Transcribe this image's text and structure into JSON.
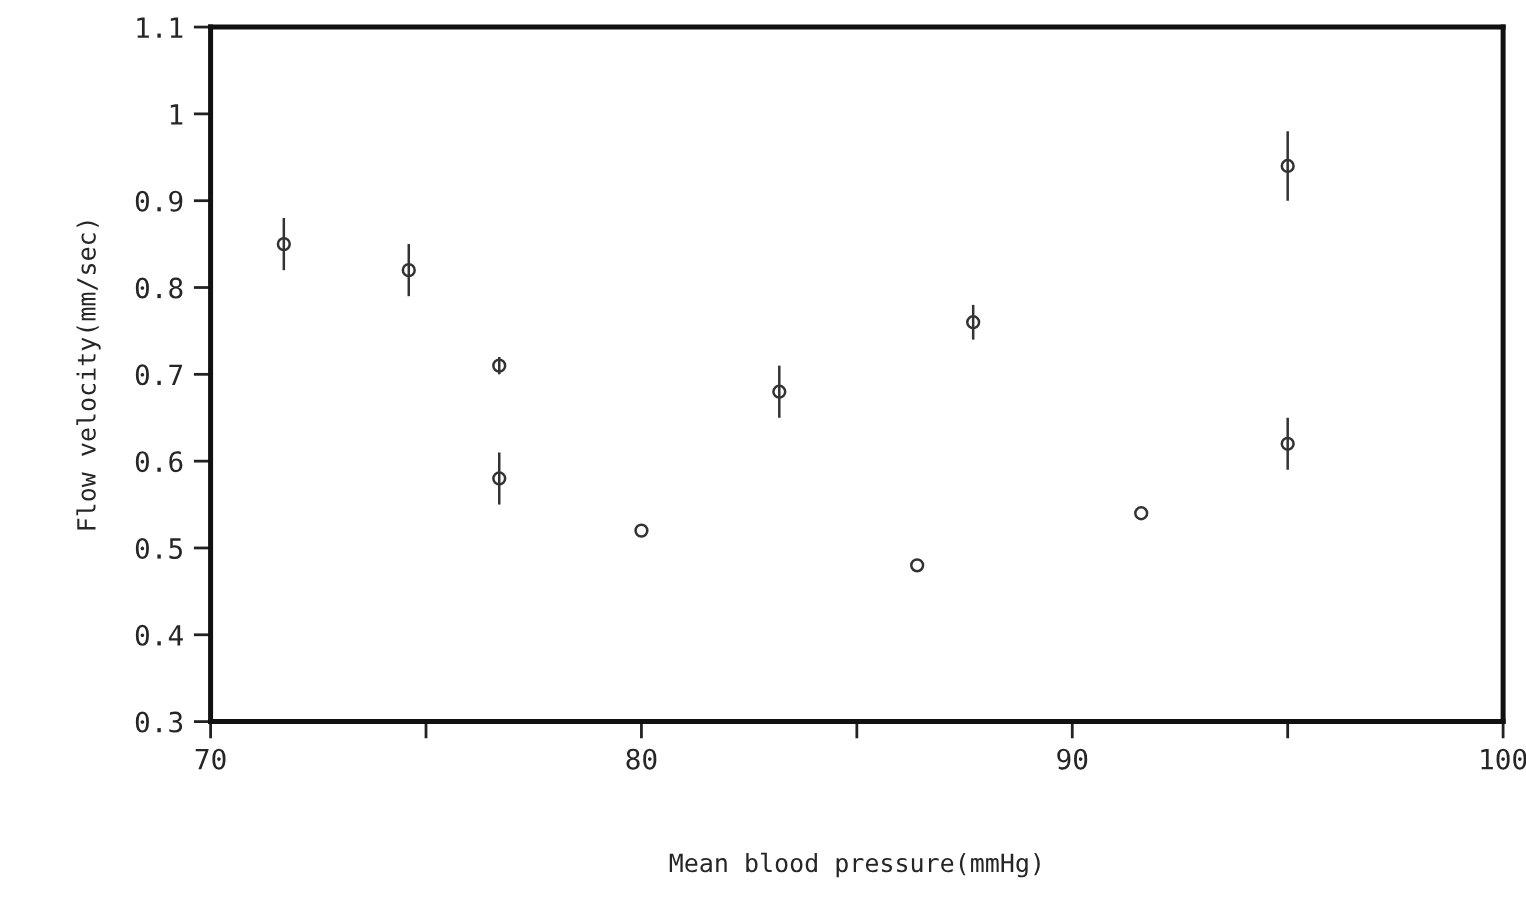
{
  "chart_data": {
    "type": "scatter",
    "xlabel": "Mean blood pressure(mmHg)",
    "ylabel": "Flow velocity(mm/sec)",
    "x": [
      71.7,
      74.6,
      76.7,
      76.7,
      80.0,
      83.2,
      86.4,
      87.7,
      91.6,
      95.0,
      95.0
    ],
    "values": [
      0.85,
      0.82,
      0.71,
      0.58,
      0.52,
      0.68,
      0.48,
      0.76,
      0.54,
      0.62,
      0.94
    ],
    "errors": [
      0.03,
      0.03,
      0.01,
      0.03,
      null,
      0.03,
      null,
      0.02,
      null,
      0.03,
      0.04
    ],
    "color": "#333333",
    "marker": "circle",
    "grid": false,
    "xlim": [
      70,
      100
    ],
    "ylim": [
      0.3,
      1.1
    ],
    "xticks": [
      70,
      {
        "value": 75,
        "label": null
      },
      80,
      {
        "value": 85,
        "label": null
      },
      90,
      {
        "value": 95,
        "label": null
      },
      100
    ],
    "yticks": [
      {
        "value": 0.3,
        "label": "0.3"
      },
      {
        "value": 0.4,
        "label": "0.4"
      },
      {
        "value": 0.5,
        "label": "0.5"
      },
      {
        "value": 0.6,
        "label": "0.6"
      },
      {
        "value": 0.7,
        "label": "0.7"
      },
      {
        "value": 0.8,
        "label": "0.8"
      },
      {
        "value": 0.9,
        "label": "0.9"
      },
      1,
      1.1
    ]
  }
}
